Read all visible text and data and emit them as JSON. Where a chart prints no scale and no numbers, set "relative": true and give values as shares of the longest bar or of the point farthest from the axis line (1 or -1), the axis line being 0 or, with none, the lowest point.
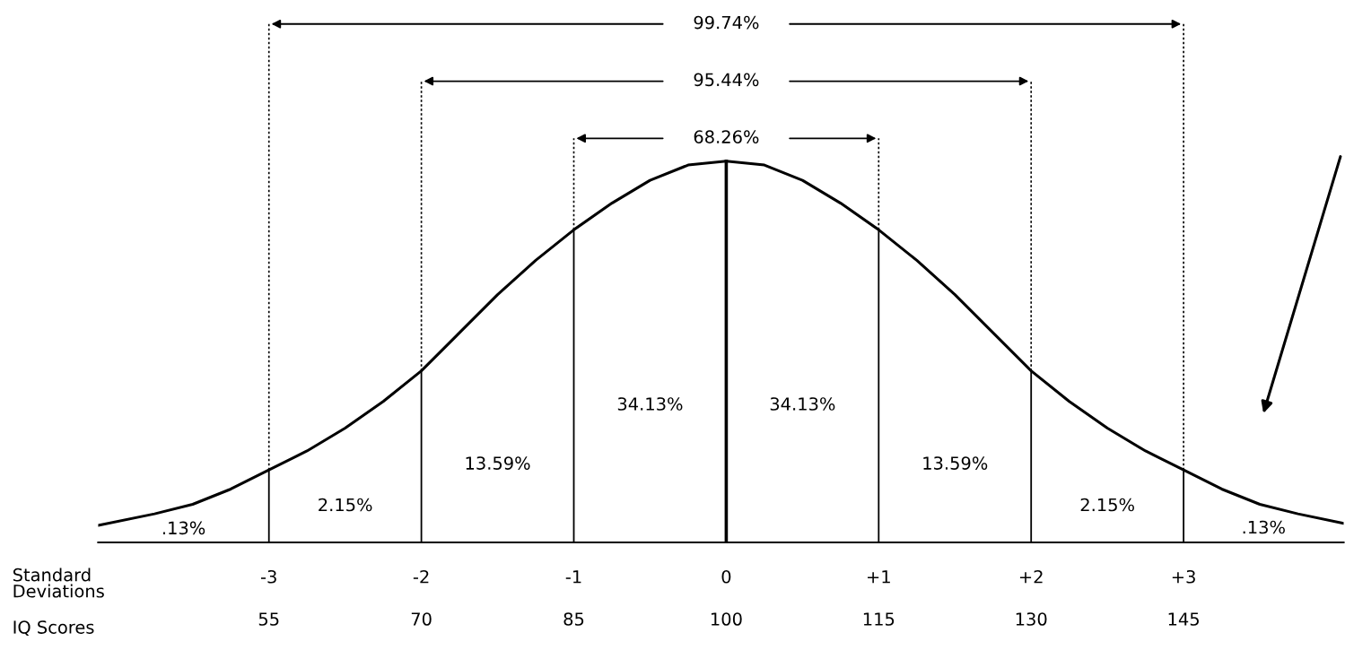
{
  "chart_data": {
    "type": "line",
    "relative": true,
    "color": "#000000",
    "grid": "x",
    "x": [
      -4.12,
      -3.75,
      -3.5,
      -3.25,
      -3,
      -2.75,
      -2.5,
      -2.25,
      -2,
      -1.75,
      -1.5,
      -1.25,
      -1,
      -0.75,
      -0.5,
      -0.25,
      0,
      0.25,
      0.5,
      0.75,
      1,
      1.25,
      1.5,
      1.75,
      2,
      2.25,
      2.5,
      2.75,
      3,
      3.25,
      3.5,
      3.75,
      4.05
    ],
    "values": [
      0.045,
      0.075,
      0.1,
      0.14,
      0.19,
      0.24,
      0.3,
      0.37,
      0.45,
      0.55,
      0.65,
      0.74,
      0.82,
      0.89,
      0.95,
      0.99,
      1,
      0.99,
      0.95,
      0.89,
      0.82,
      0.74,
      0.65,
      0.55,
      0.45,
      0.37,
      0.3,
      0.24,
      0.19,
      0.14,
      0.1,
      0.075,
      0.05
    ],
    "xlim": [
      -4.12,
      4.05
    ],
    "xticks": [
      -3,
      -2,
      -1,
      0,
      {
        "value": 1,
        "label": "+1"
      },
      {
        "value": 2,
        "label": "+2"
      },
      {
        "value": 3,
        "label": "+3"
      }
    ],
    "xlabel": "Standard\nDeviations",
    "x2lim": [
      38.2,
      160.75
    ],
    "x2ticks": [
      55,
      70,
      85,
      100,
      115,
      130,
      145
    ],
    "x2label": "IQ Scores",
    "annotations": [
      ".13%",
      "2.15%",
      "13.59%",
      "34.13%",
      "34.13%",
      "13.59%",
      "2.15%",
      ".13%",
      "68.26%",
      "95.44%",
      "99.74%"
    ]
  }
}
